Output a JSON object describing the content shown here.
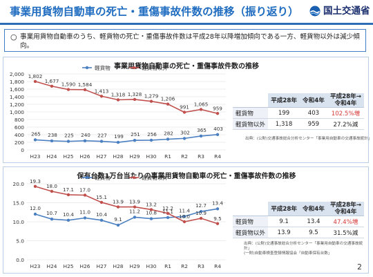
{
  "header": {
    "title": "事業用貨物自動車の死亡・重傷事故件数の推移（振り返り）",
    "org_name": "国土交通省",
    "accent_color": "#1f6cc0"
  },
  "summary": {
    "bullet": "○",
    "text": "事業用貨物自動車のうち、軽貨物の死亡・重傷事故件数は平成28年以降増加傾向である一方、軽貨物以外は減少傾向。"
  },
  "chart_data": [
    {
      "type": "line",
      "title": "事業用貨物自動車の死亡・重傷事故件数の推移",
      "categories": [
        "H23",
        "H24",
        "H25",
        "H26",
        "H27",
        "H28",
        "H29",
        "H30",
        "R1",
        "R2",
        "R3",
        "R4"
      ],
      "series": [
        {
          "name": "軽貨物",
          "color": "#4a7fc1",
          "values": [
            265,
            238,
            225,
            240,
            227,
            199,
            251,
            256,
            282,
            302,
            365,
            403
          ]
        },
        {
          "name": "軽貨物以外",
          "color": "#c0504d",
          "values": [
            1802,
            1677,
            1590,
            1584,
            1413,
            1318,
            1328,
            1279,
            1206,
            991,
            1065,
            959
          ]
        }
      ],
      "yticks": [
        "0",
        "200",
        "400",
        "600",
        "800",
        "1,000",
        "1,200",
        "1,400",
        "1,600",
        "1,800",
        "2,000"
      ],
      "ylim": [
        0,
        2000
      ],
      "series_labels": [
        [
          "265",
          "238",
          "225",
          "240",
          "227",
          "199",
          "251",
          "256",
          "282",
          "302",
          "365",
          "403"
        ],
        [
          "1,802",
          "1,677",
          "1,590",
          "1,584",
          "1,413",
          "1,318",
          "1,328",
          "1,279",
          "1,206",
          "991",
          "1,065",
          "959"
        ]
      ],
      "grid": true,
      "legend": "top-center",
      "table": {
        "headers": [
          "",
          "平成28年",
          "令和4年",
          "平成28年→\n令和4年"
        ],
        "rows": [
          {
            "label": "軽貨物",
            "v1": "199",
            "v2": "403",
            "change": "102.5%増"
          },
          {
            "label": "軽貨物以外",
            "v1": "1,318",
            "v2": "959",
            "change": "27.2%減"
          }
        ]
      },
      "source": "出典：(公財)交通事故総合分析センター「事業用自動車の交通事故統計」"
    },
    {
      "type": "line",
      "title": "保有台数1万台当たりの事業用貨物自動車の死亡・重傷事故件数の推移",
      "categories": [
        "H23",
        "H24",
        "H25",
        "H26",
        "H27",
        "H28",
        "H29",
        "H30",
        "R1",
        "R2",
        "R3",
        "R4"
      ],
      "series": [
        {
          "name": "軽貨物",
          "color": "#4a7fc1",
          "values": [
            12.0,
            10.7,
            10.4,
            11.0,
            10.4,
            9.1,
            11.2,
            10.8,
            11.1,
            11.4,
            12.7,
            13.4
          ]
        },
        {
          "name": "軽貨物以外",
          "color": "#c0504d",
          "values": [
            19.3,
            18.0,
            17.1,
            17.0,
            15.1,
            13.9,
            13.9,
            13.2,
            12.2,
            10.0,
            10.9,
            9.5
          ]
        }
      ],
      "yticks": [
        "0.0",
        "5.0",
        "10.0",
        "15.0",
        "20.0"
      ],
      "ylim": [
        0,
        20
      ],
      "series_labels": [
        [
          "12.0",
          "10.7",
          "10.4",
          "11.0",
          "10.4",
          "9.1",
          "11.2",
          "10.8",
          "11.1",
          "11.4",
          "12.7",
          "13.4"
        ],
        [
          "19.3",
          "18.0",
          "17.1",
          "17.0",
          "15.1",
          "13.9",
          "13.9",
          "13.2",
          "12.2",
          "10.0",
          "10.9",
          "9.5"
        ]
      ],
      "grid": true,
      "legend": "top-center",
      "table": {
        "headers": [
          "",
          "平成28年",
          "令和4年",
          "平成28年→\n令和4年"
        ],
        "rows": [
          {
            "label": "軽貨物",
            "v1": "9.1",
            "v2": "13.4",
            "change": "47.4%増"
          },
          {
            "label": "軽貨物以外",
            "v1": "13.9",
            "v2": "9.5",
            "change": "31.5%減"
          }
        ]
      },
      "source": "出典：(公財)交通事故総合分析センター「事業用自動車の交通事故統計」\n(一財)自動車検査登録情報協会「自動車保有台数」"
    }
  ],
  "page_number": "2"
}
